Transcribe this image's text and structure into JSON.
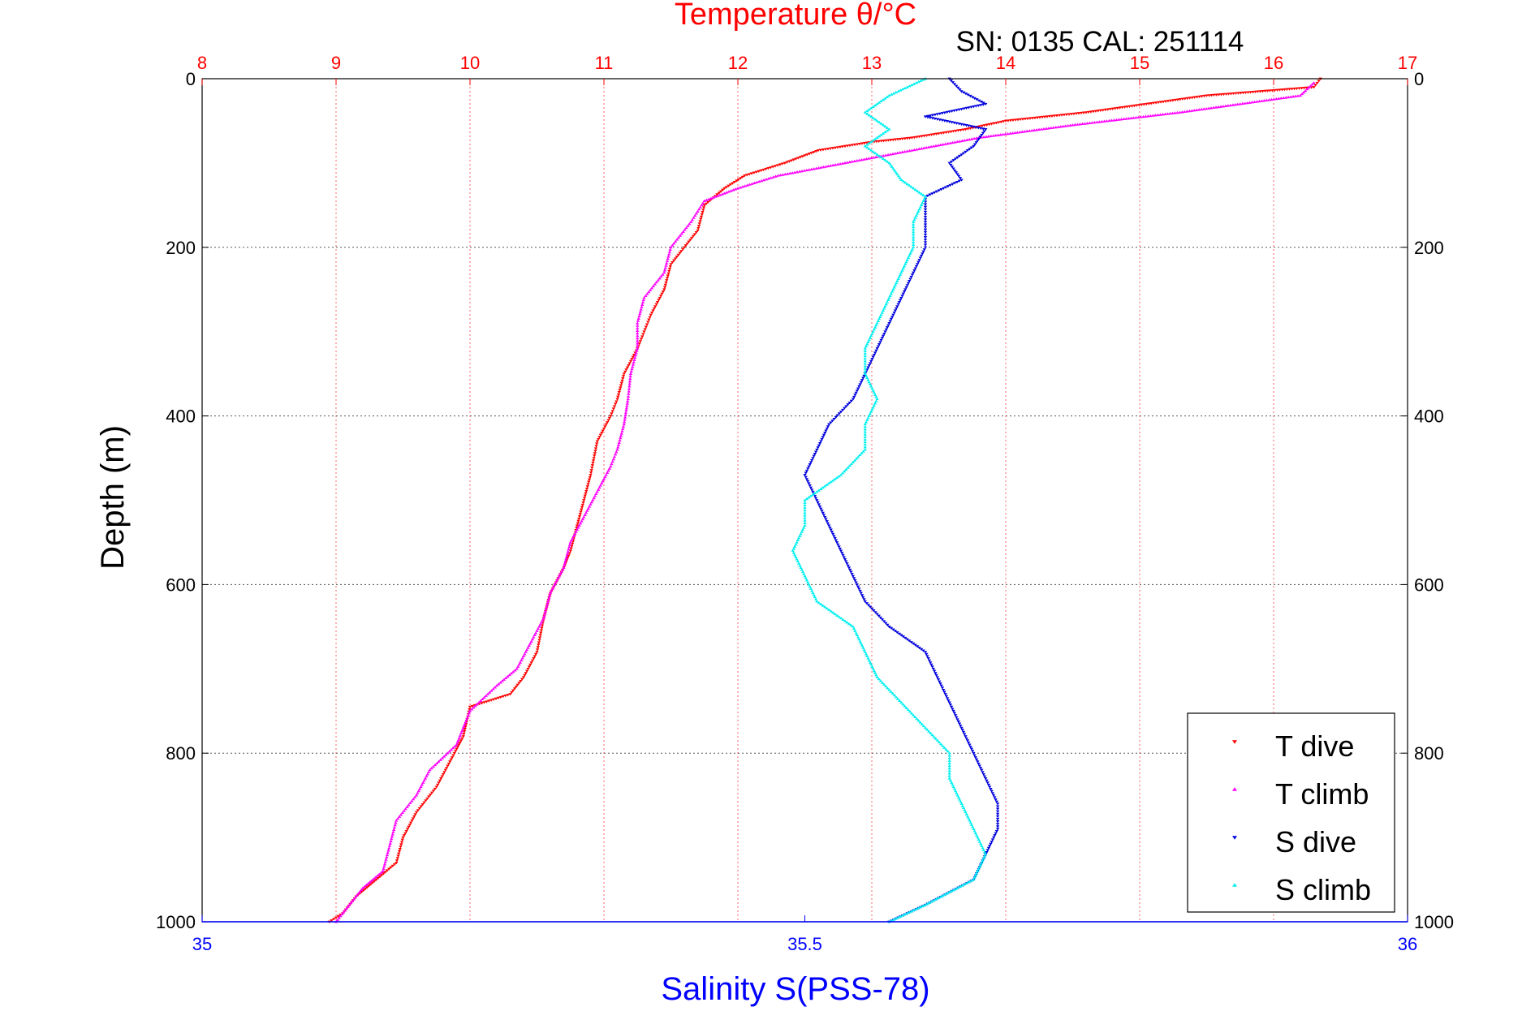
{
  "chart_data": {
    "type": "scatter",
    "title": "Temperature θ/°C",
    "subtitle": "SN: 0135  CAL: 251114",
    "ylabel": "Depth (m)",
    "xlabel": "Salinity S(PSS-78)",
    "temperature_axis": {
      "ticks": [
        "8",
        "9",
        "10",
        "11",
        "12",
        "13",
        "14",
        "15",
        "16",
        "17"
      ],
      "range": [
        8,
        17
      ],
      "grid": true,
      "color": "#ff0000"
    },
    "salinity_axis": {
      "ticks": [
        "35",
        "35.5",
        "36"
      ],
      "range": [
        35,
        36
      ],
      "color": "#0000ff"
    },
    "depth_axis": {
      "ticks": [
        "0",
        "200",
        "400",
        "600",
        "800",
        "1000"
      ],
      "range": [
        0,
        1000
      ],
      "reversed": true,
      "grid": true
    },
    "legend": {
      "position": "bottom-right",
      "items": [
        {
          "label": "T dive",
          "color": "#ff0000",
          "marker": "triangle-down"
        },
        {
          "label": "T climb",
          "color": "#ff00ff",
          "marker": "triangle-up"
        },
        {
          "label": "S dive",
          "color": "#0000dd",
          "marker": "triangle-down"
        },
        {
          "label": "S climb",
          "color": "#00f0f0",
          "marker": "triangle-up"
        }
      ]
    },
    "series": [
      {
        "name": "T dive",
        "axis": "temperature",
        "color": "#ff0000",
        "marker": "triangle-down",
        "points": [
          [
            16.35,
            0
          ],
          [
            16.3,
            10
          ],
          [
            15.5,
            20
          ],
          [
            14.6,
            40
          ],
          [
            14.0,
            50
          ],
          [
            13.7,
            60
          ],
          [
            13.3,
            70
          ],
          [
            13.0,
            75
          ],
          [
            12.6,
            85
          ],
          [
            12.35,
            100
          ],
          [
            12.05,
            115
          ],
          [
            11.9,
            130
          ],
          [
            11.75,
            150
          ],
          [
            11.7,
            180
          ],
          [
            11.6,
            200
          ],
          [
            11.5,
            220
          ],
          [
            11.45,
            250
          ],
          [
            11.35,
            280
          ],
          [
            11.3,
            300
          ],
          [
            11.25,
            320
          ],
          [
            11.15,
            350
          ],
          [
            11.1,
            380
          ],
          [
            11.05,
            400
          ],
          [
            10.95,
            430
          ],
          [
            10.9,
            470
          ],
          [
            10.85,
            500
          ],
          [
            10.8,
            530
          ],
          [
            10.75,
            560
          ],
          [
            10.7,
            580
          ],
          [
            10.6,
            610
          ],
          [
            10.55,
            640
          ],
          [
            10.5,
            680
          ],
          [
            10.4,
            710
          ],
          [
            10.3,
            730
          ],
          [
            10.0,
            745
          ],
          [
            9.95,
            780
          ],
          [
            9.85,
            810
          ],
          [
            9.75,
            840
          ],
          [
            9.6,
            870
          ],
          [
            9.5,
            900
          ],
          [
            9.45,
            930
          ],
          [
            9.3,
            950
          ],
          [
            9.15,
            970
          ],
          [
            9.05,
            990
          ],
          [
            8.95,
            1000
          ]
        ]
      },
      {
        "name": "T climb",
        "axis": "temperature",
        "color": "#ff00ff",
        "marker": "triangle-up",
        "points": [
          [
            16.3,
            5
          ],
          [
            16.2,
            20
          ],
          [
            15.3,
            40
          ],
          [
            14.5,
            55
          ],
          [
            13.8,
            70
          ],
          [
            13.3,
            85
          ],
          [
            12.8,
            100
          ],
          [
            12.3,
            115
          ],
          [
            12.0,
            130
          ],
          [
            11.75,
            145
          ],
          [
            11.65,
            170
          ],
          [
            11.5,
            200
          ],
          [
            11.45,
            230
          ],
          [
            11.3,
            260
          ],
          [
            11.25,
            290
          ],
          [
            11.25,
            320
          ],
          [
            11.2,
            350
          ],
          [
            11.18,
            380
          ],
          [
            11.15,
            410
          ],
          [
            11.1,
            440
          ],
          [
            11.05,
            460
          ],
          [
            10.95,
            490
          ],
          [
            10.85,
            520
          ],
          [
            10.75,
            550
          ],
          [
            10.7,
            580
          ],
          [
            10.6,
            610
          ],
          [
            10.55,
            640
          ],
          [
            10.45,
            670
          ],
          [
            10.35,
            700
          ],
          [
            10.2,
            720
          ],
          [
            10.0,
            750
          ],
          [
            9.9,
            790
          ],
          [
            9.7,
            820
          ],
          [
            9.6,
            850
          ],
          [
            9.45,
            880
          ],
          [
            9.4,
            910
          ],
          [
            9.35,
            940
          ],
          [
            9.2,
            960
          ],
          [
            9.1,
            980
          ],
          [
            9.0,
            1000
          ]
        ]
      },
      {
        "name": "S dive",
        "axis": "salinity",
        "color": "#0000dd",
        "marker": "triangle-down",
        "points": [
          [
            35.62,
            0
          ],
          [
            35.63,
            15
          ],
          [
            35.65,
            30
          ],
          [
            35.6,
            45
          ],
          [
            35.65,
            60
          ],
          [
            35.64,
            80
          ],
          [
            35.62,
            100
          ],
          [
            35.63,
            120
          ],
          [
            35.6,
            140
          ],
          [
            35.6,
            170
          ],
          [
            35.6,
            200
          ],
          [
            35.59,
            230
          ],
          [
            35.58,
            260
          ],
          [
            35.57,
            290
          ],
          [
            35.56,
            320
          ],
          [
            35.55,
            350
          ],
          [
            35.54,
            380
          ],
          [
            35.52,
            410
          ],
          [
            35.51,
            440
          ],
          [
            35.5,
            470
          ],
          [
            35.51,
            500
          ],
          [
            35.52,
            530
          ],
          [
            35.53,
            560
          ],
          [
            35.54,
            590
          ],
          [
            35.55,
            620
          ],
          [
            35.57,
            650
          ],
          [
            35.6,
            680
          ],
          [
            35.61,
            710
          ],
          [
            35.62,
            740
          ],
          [
            35.63,
            770
          ],
          [
            35.64,
            800
          ],
          [
            35.65,
            830
          ],
          [
            35.66,
            860
          ],
          [
            35.66,
            890
          ],
          [
            35.65,
            920
          ],
          [
            35.64,
            950
          ],
          [
            35.6,
            980
          ],
          [
            35.57,
            1000
          ]
        ]
      },
      {
        "name": "S climb",
        "axis": "salinity",
        "color": "#00f0f0",
        "marker": "triangle-up",
        "points": [
          [
            35.6,
            0
          ],
          [
            35.57,
            20
          ],
          [
            35.55,
            40
          ],
          [
            35.57,
            60
          ],
          [
            35.55,
            80
          ],
          [
            35.57,
            100
          ],
          [
            35.58,
            120
          ],
          [
            35.6,
            140
          ],
          [
            35.59,
            170
          ],
          [
            35.59,
            200
          ],
          [
            35.58,
            230
          ],
          [
            35.57,
            260
          ],
          [
            35.56,
            290
          ],
          [
            35.55,
            320
          ],
          [
            35.55,
            350
          ],
          [
            35.56,
            380
          ],
          [
            35.55,
            410
          ],
          [
            35.55,
            440
          ],
          [
            35.53,
            470
          ],
          [
            35.5,
            500
          ],
          [
            35.5,
            530
          ],
          [
            35.49,
            560
          ],
          [
            35.5,
            590
          ],
          [
            35.51,
            620
          ],
          [
            35.54,
            650
          ],
          [
            35.55,
            680
          ],
          [
            35.56,
            710
          ],
          [
            35.58,
            740
          ],
          [
            35.6,
            770
          ],
          [
            35.62,
            800
          ],
          [
            35.62,
            830
          ],
          [
            35.63,
            860
          ],
          [
            35.64,
            890
          ],
          [
            35.65,
            920
          ],
          [
            35.64,
            950
          ],
          [
            35.6,
            980
          ],
          [
            35.57,
            1000
          ]
        ]
      }
    ]
  }
}
